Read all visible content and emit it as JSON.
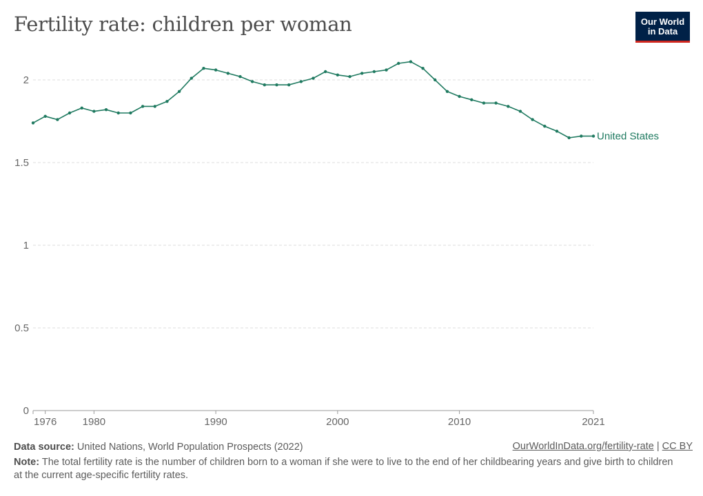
{
  "header": {
    "title": "Fertility rate: children per woman",
    "logo_line1": "Our World",
    "logo_line2": "in Data"
  },
  "footer": {
    "source_label": "Data source:",
    "source_text": "United Nations, World Population Prospects (2022)",
    "link_text": "OurWorldInData.org/fertility-rate",
    "separator": "|",
    "license_text": "CC BY",
    "note_label": "Note:",
    "note_text": "The total fertility rate is the number of children born to a woman if she were to live to the end of her childbearing years and give birth to children at the current age-specific fertility rates."
  },
  "colors": {
    "series": "#1f7a60",
    "grid": "#dddddd",
    "axis": "#666666",
    "tick_text": "#666666",
    "logo_bg": "#002147",
    "logo_bar": "#ce261e"
  },
  "chart_data": {
    "type": "line",
    "title": "Fertility rate: children per woman",
    "xlabel": "",
    "ylabel": "",
    "xlim": [
      1975,
      2021
    ],
    "ylim": [
      0,
      2.2
    ],
    "y_ticks": [
      0,
      0.5,
      1,
      1.5,
      2
    ],
    "y_tick_labels": [
      "0",
      "0.5",
      "1",
      "1.5",
      "2"
    ],
    "x_ticks": [
      1976,
      1980,
      1990,
      2000,
      2010,
      2021
    ],
    "x_tick_labels": [
      "1976",
      "1980",
      "1990",
      "2000",
      "2010",
      "2021"
    ],
    "grid": "horizontal dashed",
    "legend": "inline label at line end",
    "series": [
      {
        "name": "United States",
        "x": [
          1975,
          1976,
          1977,
          1978,
          1979,
          1980,
          1981,
          1982,
          1983,
          1984,
          1985,
          1986,
          1987,
          1988,
          1989,
          1990,
          1991,
          1992,
          1993,
          1994,
          1995,
          1996,
          1997,
          1998,
          1999,
          2000,
          2001,
          2002,
          2003,
          2004,
          2005,
          2006,
          2007,
          2008,
          2009,
          2010,
          2011,
          2012,
          2013,
          2014,
          2015,
          2016,
          2017,
          2018,
          2019,
          2020,
          2021
        ],
        "values": [
          1.74,
          1.78,
          1.76,
          1.8,
          1.83,
          1.81,
          1.82,
          1.8,
          1.8,
          1.84,
          1.84,
          1.87,
          1.93,
          2.01,
          2.07,
          2.06,
          2.04,
          2.02,
          1.99,
          1.97,
          1.97,
          1.97,
          1.99,
          2.01,
          2.05,
          2.03,
          2.02,
          2.04,
          2.05,
          2.06,
          2.1,
          2.11,
          2.07,
          2.0,
          1.93,
          1.9,
          1.88,
          1.86,
          1.86,
          1.84,
          1.81,
          1.76,
          1.72,
          1.69,
          1.65,
          1.66,
          1.66
        ]
      }
    ]
  }
}
